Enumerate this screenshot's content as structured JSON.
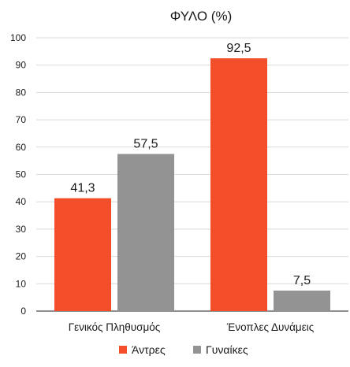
{
  "chart_data": {
    "type": "bar",
    "title": "ΦΥΛΟ (%)",
    "categories": [
      "Γενικός Πληθυσμός",
      "Ένοπλες Δυνάμεις"
    ],
    "series": [
      {
        "name": "Άντρες",
        "values": [
          41.3,
          92.5
        ],
        "labels": [
          "41,3",
          "92,5"
        ],
        "color": "#f24e2a"
      },
      {
        "name": "Γυναίκες",
        "values": [
          57.5,
          7.5
        ],
        "labels": [
          "57,5",
          "7,5"
        ],
        "color": "#939393"
      }
    ],
    "ylim": [
      0,
      100
    ],
    "yticks": [
      0,
      10,
      20,
      30,
      40,
      50,
      60,
      70,
      80,
      90,
      100
    ],
    "grid": true,
    "legend": "bottom-center"
  }
}
